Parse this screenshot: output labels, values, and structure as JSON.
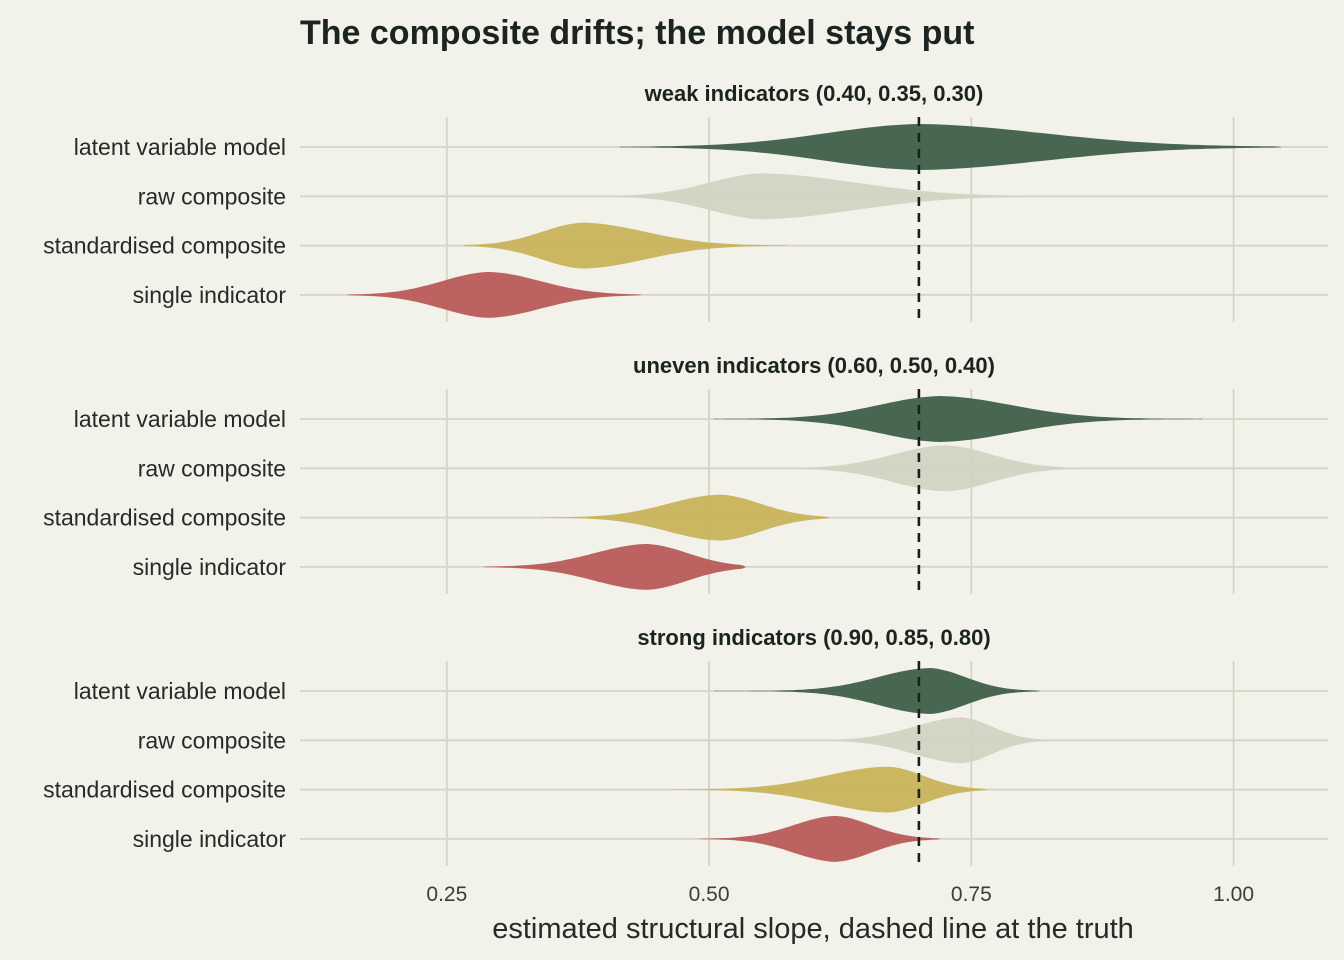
{
  "chart_data": {
    "type": "violin",
    "title": "The composite drifts; the model stays put",
    "xlabel": "estimated structural slope, dashed line at the truth",
    "xticks": [
      "0.25",
      "0.50",
      "0.75",
      "1.00"
    ],
    "xtick_values": [
      0.25,
      0.5,
      0.75,
      1.0
    ],
    "xlim": [
      0.11,
      1.09
    ],
    "truth": 0.7,
    "categories": [
      "latent variable model",
      "raw composite",
      "standardised composite",
      "single indicator"
    ],
    "colors": {
      "latent variable model": "#3f5e48",
      "raw composite": "#d3d3c3",
      "standardised composite": "#c8b35a",
      "single indicator": "#b85a59"
    },
    "panels": [
      {
        "title": "weak indicators (0.40, 0.35, 0.30)",
        "violins": [
          {
            "category": "latent variable model",
            "min": 0.415,
            "max": 1.045,
            "mode": 0.7,
            "sd_left": 0.09,
            "sd_right": 0.12
          },
          {
            "category": "raw composite",
            "min": 0.4,
            "max": 0.83,
            "mode": 0.55,
            "sd_left": 0.05,
            "sd_right": 0.09
          },
          {
            "category": "standardised composite",
            "min": 0.265,
            "max": 0.575,
            "mode": 0.38,
            "sd_left": 0.04,
            "sd_right": 0.06
          },
          {
            "category": "single indicator",
            "min": 0.155,
            "max": 0.435,
            "mode": 0.29,
            "sd_left": 0.045,
            "sd_right": 0.05
          }
        ]
      },
      {
        "title": "uneven indicators (0.60, 0.50, 0.40)",
        "violins": [
          {
            "category": "latent variable model",
            "min": 0.505,
            "max": 0.97,
            "mode": 0.72,
            "sd_left": 0.06,
            "sd_right": 0.07
          },
          {
            "category": "raw composite",
            "min": 0.55,
            "max": 0.9,
            "mode": 0.725,
            "sd_left": 0.05,
            "sd_right": 0.045
          },
          {
            "category": "standardised composite",
            "min": 0.34,
            "max": 0.615,
            "mode": 0.51,
            "sd_left": 0.05,
            "sd_right": 0.04
          },
          {
            "category": "single indicator",
            "min": 0.285,
            "max": 0.535,
            "mode": 0.44,
            "sd_left": 0.05,
            "sd_right": 0.04
          }
        ]
      },
      {
        "title": "strong indicators (0.90, 0.85, 0.80)",
        "violins": [
          {
            "category": "latent variable model",
            "min": 0.505,
            "max": 0.815,
            "mode": 0.71,
            "sd_left": 0.05,
            "sd_right": 0.035
          },
          {
            "category": "raw composite",
            "min": 0.6,
            "max": 0.84,
            "mode": 0.74,
            "sd_left": 0.045,
            "sd_right": 0.03
          },
          {
            "category": "standardised composite",
            "min": 0.465,
            "max": 0.765,
            "mode": 0.67,
            "sd_left": 0.06,
            "sd_right": 0.035
          },
          {
            "category": "single indicator",
            "min": 0.49,
            "max": 0.72,
            "mode": 0.62,
            "sd_left": 0.04,
            "sd_right": 0.035
          }
        ]
      }
    ]
  }
}
